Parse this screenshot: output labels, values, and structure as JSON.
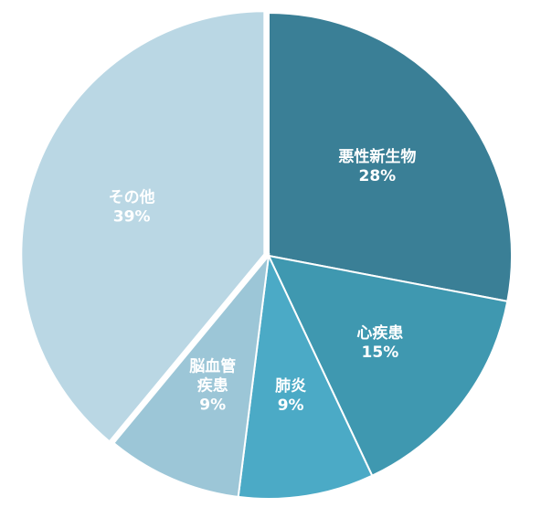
{
  "chart_data": {
    "type": "pie",
    "title": "",
    "slices": [
      {
        "label": "悪性新生物",
        "value": 28,
        "value_label": "28%",
        "color": "#3A7F96",
        "exploded": false
      },
      {
        "label": "心疾患",
        "value": 15,
        "value_label": "15%",
        "color": "#3F98B0",
        "exploded": false
      },
      {
        "label": "肺炎",
        "value": 9,
        "value_label": "9%",
        "color": "#4BAAC6",
        "exploded": false
      },
      {
        "label": "脳血管\n疾患",
        "value": 9,
        "value_label": "9%",
        "color": "#9CC6D7",
        "exploded": false
      },
      {
        "label": "その他",
        "value": 39,
        "value_label": "39%",
        "color": "#BAD7E4",
        "exploded": true
      }
    ],
    "start": "12 o'clock",
    "direction": "clockwise",
    "legend": "none",
    "labels": "inside"
  }
}
